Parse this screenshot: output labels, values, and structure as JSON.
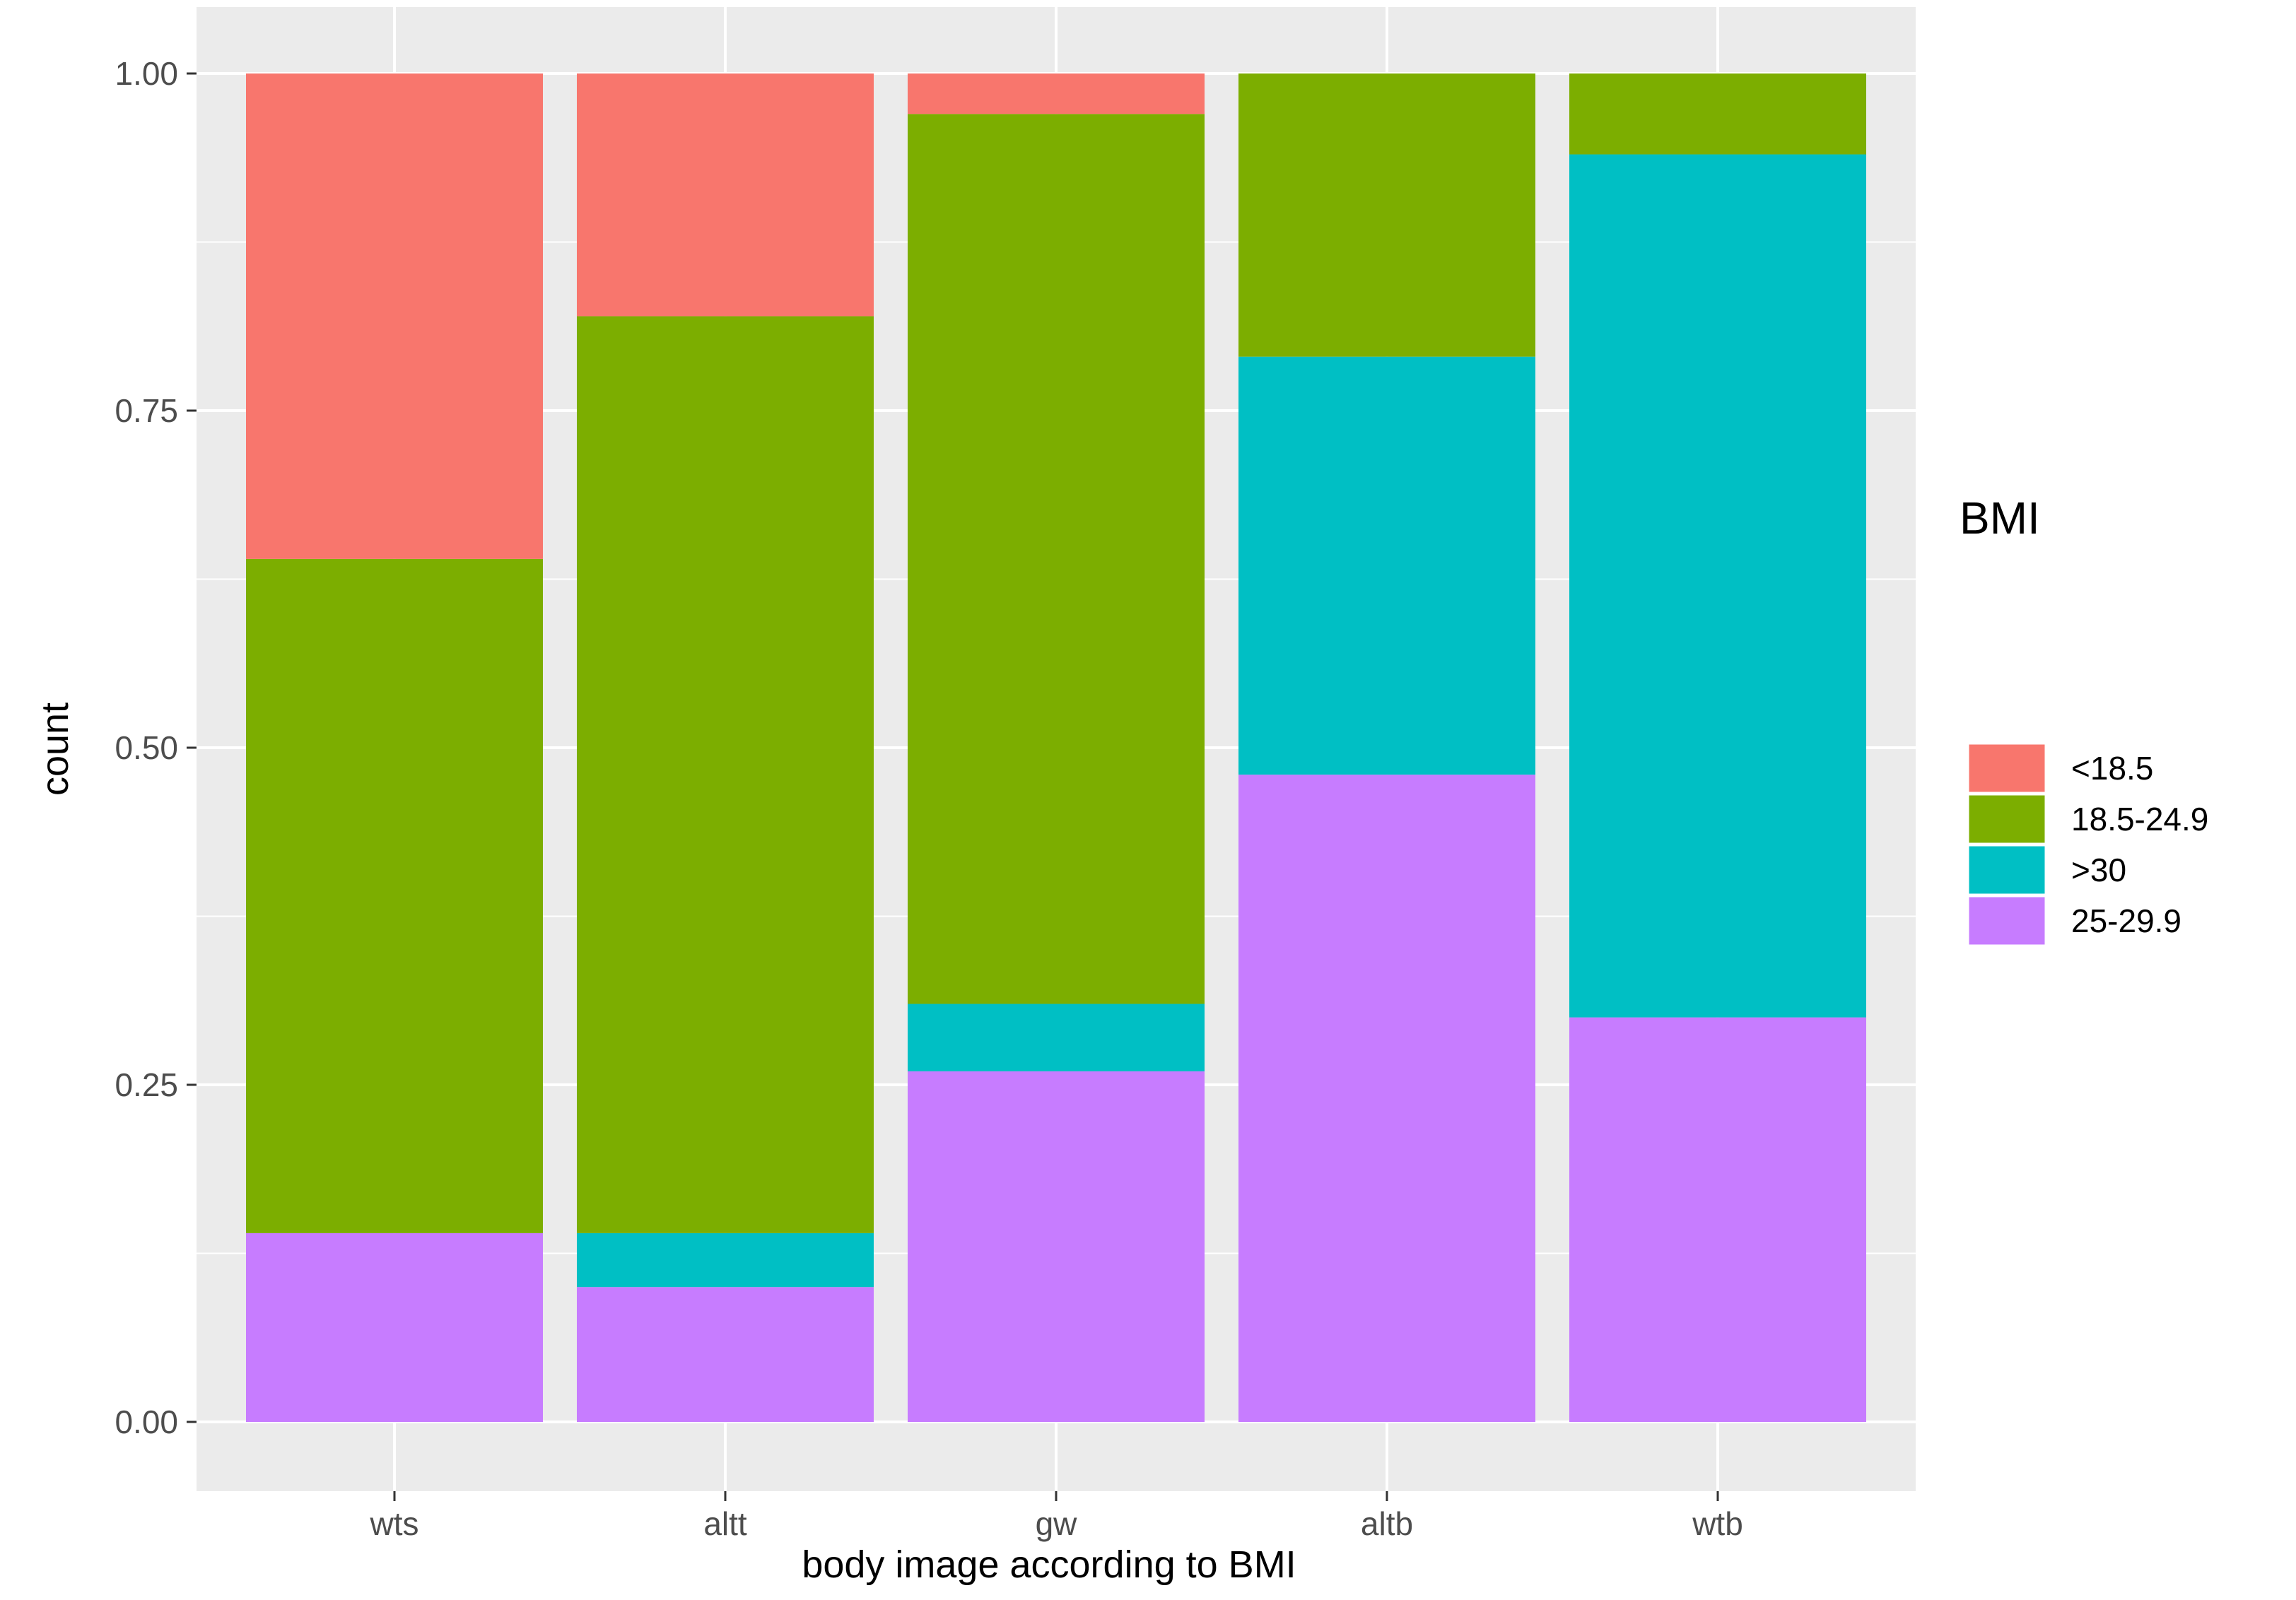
{
  "chart_data": {
    "type": "bar",
    "stacked": "fill",
    "title": "",
    "xlabel": "body image according to BMI",
    "ylabel": "count",
    "ylim": [
      0,
      1
    ],
    "yticks": [
      "0.00",
      "0.25",
      "0.50",
      "0.75",
      "1.00"
    ],
    "ytick_values": [
      0,
      0.25,
      0.5,
      0.75,
      1.0
    ],
    "categories": [
      "wts",
      "altt",
      "gw",
      "altb",
      "wtb"
    ],
    "grid": true,
    "legend_placement": "right",
    "legend_title": "BMI",
    "series": [
      {
        "name": "25-29.9",
        "color": "#C77CFF",
        "values": [
          0.14,
          0.1,
          0.26,
          0.48,
          0.3
        ]
      },
      {
        "name": ">30",
        "color": "#00BFC4",
        "values": [
          0.0,
          0.04,
          0.05,
          0.31,
          0.64
        ]
      },
      {
        "name": "18.5-24.9",
        "color": "#7CAE00",
        "values": [
          0.5,
          0.68,
          0.66,
          0.21,
          0.06
        ]
      },
      {
        "name": "<18.5",
        "color": "#F8766D",
        "values": [
          0.36,
          0.18,
          0.03,
          0.0,
          0.0
        ]
      }
    ],
    "legend_order": [
      "<18.5",
      "18.5-24.9",
      ">30",
      "25-29.9"
    ]
  }
}
